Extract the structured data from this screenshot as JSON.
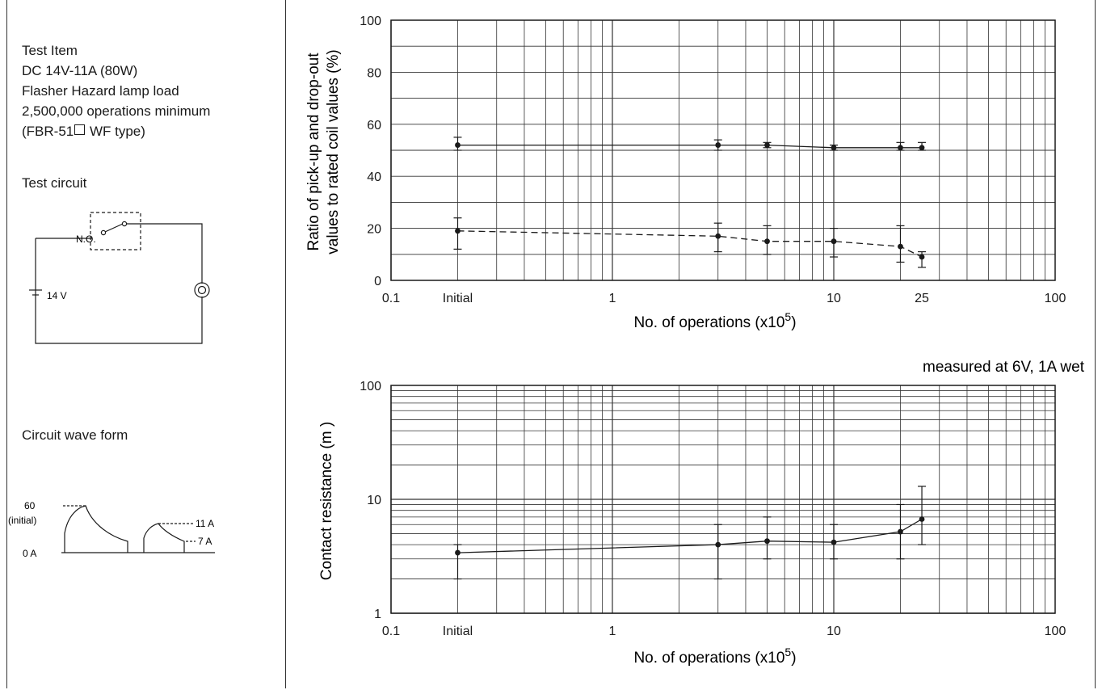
{
  "left_panel": {
    "test_item_lines": [
      "Test Item",
      "DC 14V-11A (80W)",
      "Flasher Hazard lamp load",
      "2,500,000 operations minimum"
    ],
    "type_prefix": "(FBR-51",
    "type_suffix": " WF type)",
    "test_circuit_title": "Test circuit",
    "contact_label": "N.O.",
    "voltage_label": "14 V",
    "wave_form_title": "Circuit wave form",
    "wave_labels": {
      "peak": "60",
      "initial": "(initial)",
      "zero": "0 A",
      "steady": "11 A",
      "low": "7 A"
    }
  },
  "chart_data": [
    {
      "type": "line",
      "x_scale": "log",
      "xlim": [
        0.1,
        100
      ],
      "ylim": [
        0,
        100
      ],
      "xlabel": "No. of operations (x10",
      "xlabel_sup": "5",
      "xlabel_close": ")",
      "ylabel_lines": [
        "Ratio of pick-up and drop-out",
        "values to rated coil values (%)"
      ],
      "xticks": [
        {
          "value": 0.1,
          "label": "0.1"
        },
        {
          "value": 0.2,
          "label": "Initial"
        },
        {
          "value": 1,
          "label": "1"
        },
        {
          "value": 10,
          "label": "10"
        },
        {
          "value": 25,
          "label": "25"
        },
        {
          "value": 100,
          "label": "100"
        }
      ],
      "yticks": [
        0,
        20,
        40,
        60,
        80,
        100
      ],
      "series": [
        {
          "style": "solid",
          "points": [
            {
              "x": 0.2,
              "y": 52,
              "lo": 50,
              "hi": 55
            },
            {
              "x": 3,
              "y": 52,
              "lo": 50,
              "hi": 54
            },
            {
              "x": 5,
              "y": 52,
              "lo": 51,
              "hi": 53
            },
            {
              "x": 10,
              "y": 51,
              "lo": 50,
              "hi": 52
            },
            {
              "x": 20,
              "y": 51,
              "lo": 50,
              "hi": 53
            },
            {
              "x": 25,
              "y": 51,
              "lo": 50,
              "hi": 53
            }
          ]
        },
        {
          "style": "dashed",
          "points": [
            {
              "x": 0.2,
              "y": 19,
              "lo": 12,
              "hi": 24
            },
            {
              "x": 3,
              "y": 17,
              "lo": 11,
              "hi": 22
            },
            {
              "x": 5,
              "y": 15,
              "lo": 10,
              "hi": 21
            },
            {
              "x": 10,
              "y": 15,
              "lo": 9,
              "hi": 20
            },
            {
              "x": 20,
              "y": 13,
              "lo": 7,
              "hi": 21
            },
            {
              "x": 25,
              "y": 9,
              "lo": 5,
              "hi": 11
            }
          ]
        }
      ]
    },
    {
      "type": "line",
      "x_scale": "log",
      "y_scale": "log",
      "xlim": [
        0.1,
        100
      ],
      "ylim": [
        1,
        100
      ],
      "annotation": "measured at 6V, 1A wet",
      "xlabel": "No. of operations (x10",
      "xlabel_sup": "5",
      "xlabel_close": ")",
      "ylabel": "Contact resistance (m )",
      "xticks": [
        {
          "value": 0.1,
          "label": "0.1"
        },
        {
          "value": 0.2,
          "label": "Initial"
        },
        {
          "value": 1,
          "label": "1"
        },
        {
          "value": 10,
          "label": "10"
        },
        {
          "value": 100,
          "label": "100"
        }
      ],
      "yticks": [
        {
          "value": 1,
          "label": "1"
        },
        {
          "value": 10,
          "label": "10"
        },
        {
          "value": 100,
          "label": "100"
        }
      ],
      "series": [
        {
          "style": "solid",
          "points": [
            {
              "x": 0.2,
              "y": 3.4,
              "lo": 2,
              "hi": 4
            },
            {
              "x": 3,
              "y": 4,
              "lo": 2,
              "hi": 6
            },
            {
              "x": 5,
              "y": 4.3,
              "lo": 3,
              "hi": 7
            },
            {
              "x": 10,
              "y": 4.2,
              "lo": 3,
              "hi": 6
            },
            {
              "x": 20,
              "y": 5.2,
              "lo": 3,
              "hi": 9
            },
            {
              "x": 25,
              "y": 6.7,
              "lo": 4,
              "hi": 13
            }
          ]
        }
      ]
    }
  ]
}
